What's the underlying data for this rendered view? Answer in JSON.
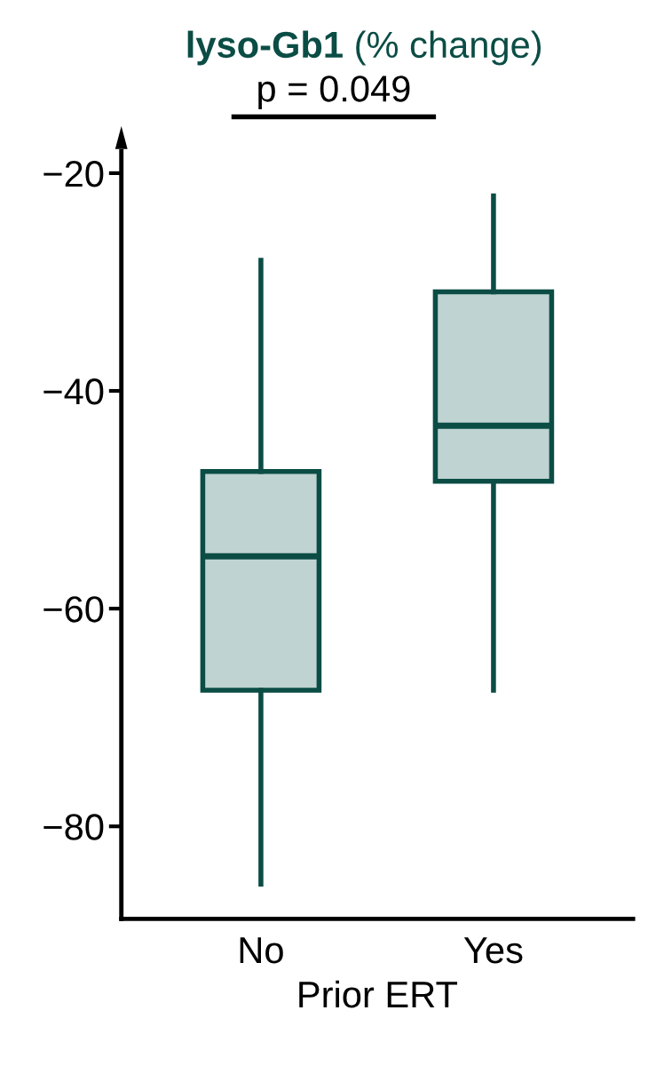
{
  "chart_data": {
    "type": "box",
    "title": "lyso-Gb1",
    "subtitle": "(% change)",
    "xlabel": "Prior ERT",
    "categories": [
      "No",
      "Yes"
    ],
    "series": [
      {
        "color": "#0b4d45",
        "boxes": [
          {
            "low": -85.3,
            "q1": -67.5,
            "median": -55.2,
            "q3": -47.4,
            "high": -28.0
          },
          {
            "low": -67.5,
            "q1": -48.3,
            "median": -43.2,
            "q3": -30.9,
            "high": -22.1
          }
        ]
      }
    ],
    "ylim": [
      -88.5,
      -18
    ],
    "yticks": [
      {
        "value": -20,
        "label": "−20"
      },
      {
        "value": -40,
        "label": "−40"
      },
      {
        "value": -60,
        "label": "−60"
      },
      {
        "value": -80,
        "label": "−80"
      }
    ],
    "annotations": [
      "p = 0.049"
    ],
    "grid": false
  }
}
